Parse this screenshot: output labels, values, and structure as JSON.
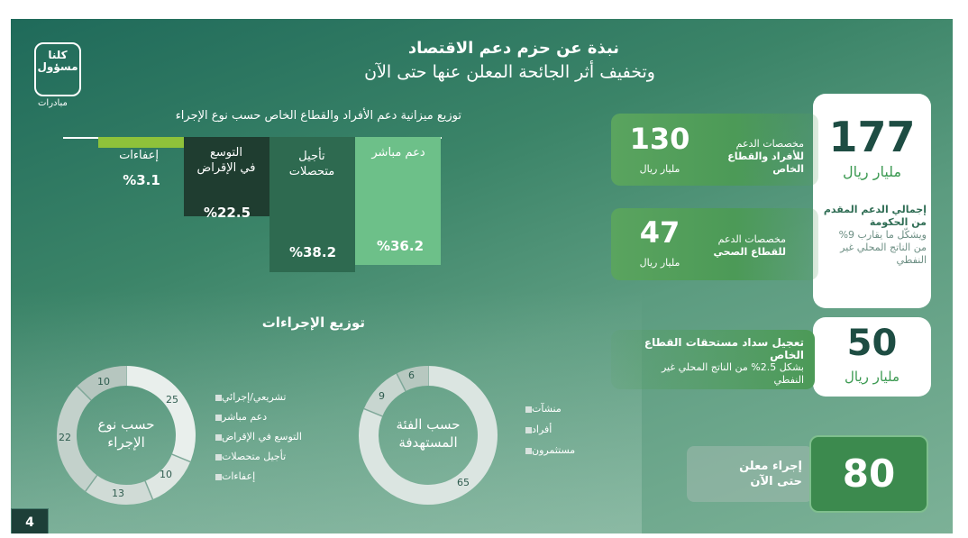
{
  "header": {
    "title_line1": "نبذة عن حزم دعم الاقتصاد",
    "title_line2": "وتخفيف أثر الجائحة المعلن عنها حتى الآن"
  },
  "logo": {
    "line1": "كلنا",
    "line2": "مسؤول",
    "sub": "مبادرات"
  },
  "chart_data": [
    {
      "type": "bar",
      "title": "توزيع ميزانية دعم الأفراد والقطاع الخاص حسب نوع الإجراء",
      "categories": [
        "إعفاءات",
        "التوسع في الإقراض",
        "تأجيل متحصلات",
        "دعم مباشر"
      ],
      "values": [
        3.1,
        22.5,
        38.2,
        36.2
      ],
      "value_labels": [
        "%3.1",
        "%22.5",
        "%38.2",
        "%36.2"
      ],
      "colors": [
        "#8ec23a",
        "#1f3d30",
        "#2e6a50",
        "#6dc089"
      ],
      "orientation": "hanging",
      "xlabel": "",
      "ylabel": ""
    },
    {
      "type": "pie",
      "style": "donut",
      "center_label": "حسب نوع الإجراء",
      "values": [
        25,
        10,
        13,
        22,
        10
      ],
      "colors": [
        "#e9efec",
        "#dfe7e3",
        "#d0dbd6",
        "#c3d1cb",
        "#b6c6bf"
      ],
      "legend": [
        "تشريعي/إجرائي",
        "دعم مباشر",
        "التوسع في الإقراض",
        "تأجيل متحصلات",
        "إعفاءات"
      ]
    },
    {
      "type": "pie",
      "style": "donut",
      "center_label": "حسب الفئة المستهدفة",
      "values": [
        65,
        9,
        6
      ],
      "colors": [
        "#dbe5e1",
        "#c8d6d0",
        "#b7c8c0"
      ],
      "legend": [
        "منشآت",
        "أفراد",
        "مستثمرون"
      ]
    }
  ],
  "distribution_title": "توزيع الإجراءات",
  "donut_type_label_line1": "حسب نوع",
  "donut_type_label_line2": "الإجراء",
  "donut_group_label_line1": "حسب الفئة",
  "donut_group_label_line2": "المستهدفة",
  "donut_type_values": {
    "v25": "25",
    "v10a": "10",
    "v13": "13",
    "v22": "22",
    "v10b": "10"
  },
  "donut_group_values": {
    "v65": "65",
    "v9": "9",
    "v6": "6"
  },
  "bar_labels": {
    "c1": "إعفاءات",
    "c2a": "التوسع",
    "c2b": "في الإقراض",
    "c3a": "تأجيل",
    "c3b": "متحصلات",
    "c4": "دعم مباشر"
  },
  "cards": {
    "total": {
      "value": "177",
      "unit": "مليار ريال",
      "desc_line1": "إجمالي الدعم المقدم",
      "desc_line2": "من الحكومة",
      "desc_line3": "ويشكّل ما يقارب 9%",
      "desc_line4": "من الناتج المحلي غير",
      "desc_line5": "النفطي"
    },
    "individuals": {
      "value": "130",
      "unit": "مليار ريال",
      "label_line1": "مخصصات الدعم",
      "label_line2": "للأفراد والقطاع الخاص"
    },
    "health": {
      "value": "47",
      "unit": "مليار ريال",
      "label_line1": "مخصصات الدعم",
      "label_line2": "للقطاع الصحي"
    },
    "private_dues": {
      "value": "50",
      "unit": "مليار ريال",
      "label_line1": "تعجيل سداد مستحقات القطاع الخاص",
      "label_line2": "بشكل 2.5%  من الناتج المحلي غير",
      "label_line3": "النفطي"
    },
    "measures": {
      "value": "80",
      "label_line1": "إجراء معلن",
      "label_line2": "حتى الآن"
    }
  },
  "page_number": "4"
}
